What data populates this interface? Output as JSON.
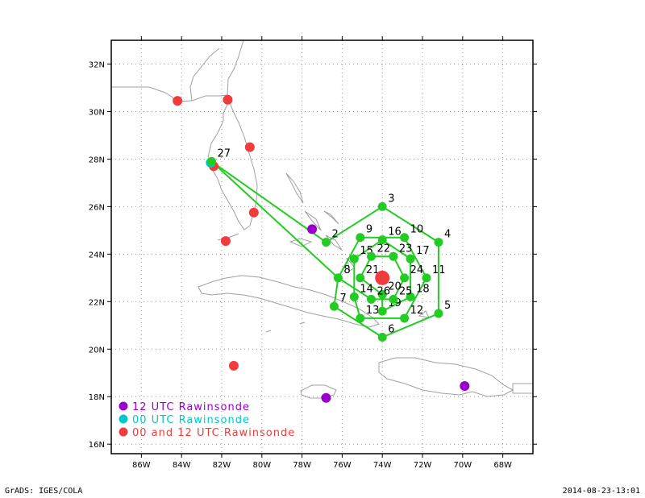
{
  "map": {
    "lon_range": [
      -87.5,
      -66.5
    ],
    "lat_range": [
      15.6,
      33.0
    ],
    "lon_ticks": [
      {
        "value": -86,
        "label": "86W"
      },
      {
        "value": -84,
        "label": "84W"
      },
      {
        "value": -82,
        "label": "82W"
      },
      {
        "value": -80,
        "label": "80W"
      },
      {
        "value": -78,
        "label": "78W"
      },
      {
        "value": -76,
        "label": "76W"
      },
      {
        "value": -74,
        "label": "74W"
      },
      {
        "value": -72,
        "label": "72W"
      },
      {
        "value": -70,
        "label": "70W"
      },
      {
        "value": -68,
        "label": "68W"
      }
    ],
    "lat_ticks": [
      {
        "value": 16,
        "label": "16N"
      },
      {
        "value": 18,
        "label": "18N"
      },
      {
        "value": 20,
        "label": "20N"
      },
      {
        "value": 22,
        "label": "22N"
      },
      {
        "value": 24,
        "label": "24N"
      },
      {
        "value": 26,
        "label": "26N"
      },
      {
        "value": 28,
        "label": "28N"
      },
      {
        "value": 30,
        "label": "30N"
      },
      {
        "value": 32,
        "label": "32N"
      }
    ],
    "grid": true,
    "colors": {
      "coast": "#a0a0a0",
      "pattern": "#22cc22",
      "rawin_12": "#9900cc",
      "rawin_00": "#00c8c8",
      "rawin_both": "#f03c3c",
      "storm": "#f03c3c"
    },
    "storm_center": {
      "lon": -74.0,
      "lat": 23.0
    },
    "dropsondes": [
      {
        "id": "2",
        "lon": -76.8,
        "lat": 24.5
      },
      {
        "id": "3",
        "lon": -74.0,
        "lat": 26.0
      },
      {
        "id": "4",
        "lon": -71.2,
        "lat": 24.5
      },
      {
        "id": "5",
        "lon": -71.2,
        "lat": 21.5
      },
      {
        "id": "6",
        "lon": -74.0,
        "lat": 20.5
      },
      {
        "id": "7",
        "lon": -76.4,
        "lat": 21.8
      },
      {
        "id": "8",
        "lon": -76.2,
        "lat": 23.0
      },
      {
        "id": "9",
        "lon": -75.1,
        "lat": 24.7
      },
      {
        "id": "10",
        "lon": -72.9,
        "lat": 24.7
      },
      {
        "id": "11",
        "lon": -71.8,
        "lat": 23.0
      },
      {
        "id": "12",
        "lon": -72.9,
        "lat": 21.3
      },
      {
        "id": "13",
        "lon": -75.1,
        "lat": 21.3
      },
      {
        "id": "14",
        "lon": -75.4,
        "lat": 22.2
      },
      {
        "id": "15",
        "lon": -75.4,
        "lat": 23.8
      },
      {
        "id": "16",
        "lon": -74.0,
        "lat": 24.6
      },
      {
        "id": "17",
        "lon": -72.6,
        "lat": 23.8
      },
      {
        "id": "18",
        "lon": -72.6,
        "lat": 22.2
      },
      {
        "id": "19",
        "lon": -74.0,
        "lat": 21.6
      },
      {
        "id": "20",
        "lon": -74.0,
        "lat": 22.3
      },
      {
        "id": "21",
        "lon": -75.1,
        "lat": 23.0
      },
      {
        "id": "22",
        "lon": -74.55,
        "lat": 23.9
      },
      {
        "id": "23",
        "lon": -73.45,
        "lat": 23.9
      },
      {
        "id": "24",
        "lon": -72.9,
        "lat": 23.0
      },
      {
        "id": "25",
        "lon": -73.45,
        "lat": 22.1
      },
      {
        "id": "26",
        "lon": -74.55,
        "lat": 22.1
      },
      {
        "id": "27",
        "lon": -82.5,
        "lat": 27.9
      }
    ],
    "flight_track": [
      "27",
      "2",
      "3",
      "4",
      "5",
      "6",
      "7",
      "8",
      "9",
      "10",
      "11",
      "12",
      "13",
      "14",
      "15",
      "16",
      "17",
      "18",
      "19",
      "20",
      "21",
      "22",
      "23",
      "24",
      "25",
      "26",
      "8",
      "27"
    ],
    "rawinsondes": [
      {
        "type": "both",
        "lon": -84.2,
        "lat": 30.45
      },
      {
        "type": "both",
        "lon": -81.7,
        "lat": 30.5
      },
      {
        "type": "both",
        "lon": -80.6,
        "lat": 28.5
      },
      {
        "type": "both",
        "lon": -82.4,
        "lat": 27.7
      },
      {
        "type": "both",
        "lon": -80.4,
        "lat": 25.75
      },
      {
        "type": "both",
        "lon": -81.8,
        "lat": 24.55
      },
      {
        "type": "both",
        "lon": -81.4,
        "lat": 19.3
      },
      {
        "type": "12",
        "lon": -77.5,
        "lat": 25.05
      },
      {
        "type": "12",
        "lon": -76.8,
        "lat": 17.95
      },
      {
        "type": "12",
        "lon": -69.9,
        "lat": 18.45
      },
      {
        "type": "00",
        "lon": -82.55,
        "lat": 27.85
      }
    ]
  },
  "legend": [
    {
      "type": "12",
      "label": "12 UTC Rawinsonde"
    },
    {
      "type": "00",
      "label": "00 UTC Rawinsonde"
    },
    {
      "type": "both",
      "label": "00 and 12 UTC Rawinsonde"
    }
  ],
  "footer": {
    "left": "GrADS: IGES/COLA",
    "right": "2014-08-23-13:01"
  }
}
